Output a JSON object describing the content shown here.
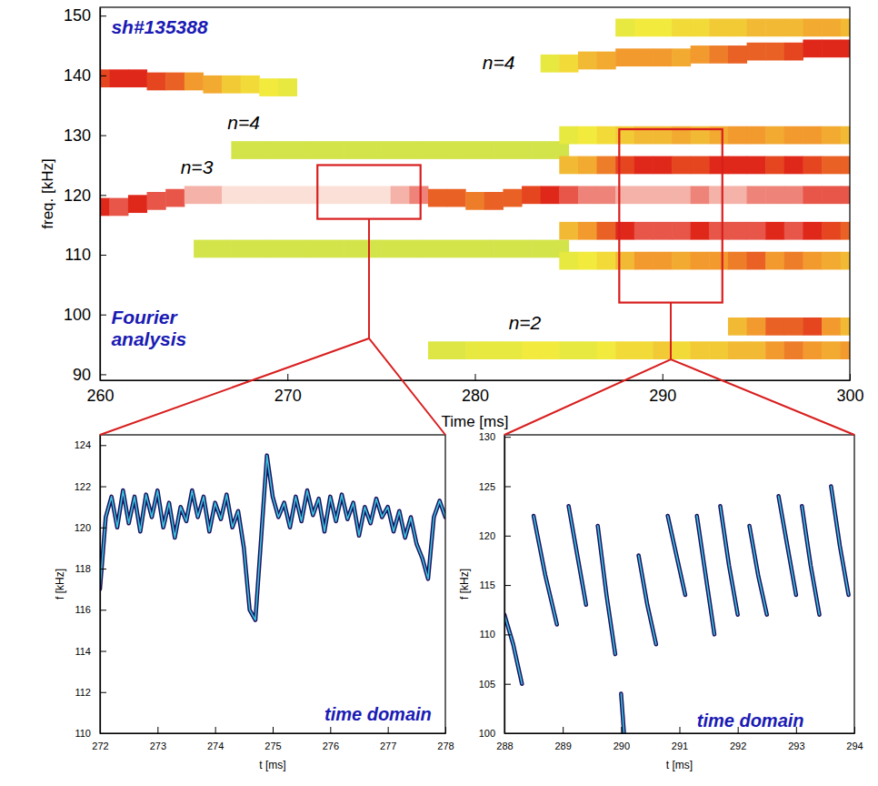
{
  "chart_data": [
    {
      "type": "heatmap",
      "xlabel": "Time [ms]",
      "ylabel": "freq. [kHz]",
      "xlim": [
        260,
        300
      ],
      "ylim": [
        89,
        151.4
      ],
      "xticks": [
        260,
        270,
        280,
        290,
        300
      ],
      "yticks": [
        90,
        100,
        110,
        120,
        130,
        140,
        150
      ],
      "zlim": [
        0,
        1
      ],
      "series": [
        {
          "x": [
            268,
            270,
            272,
            274,
            276,
            278,
            280,
            282,
            284
          ],
          "values": [
            127.5,
            127.5,
            127.5,
            127.5,
            127.5,
            127.5,
            127.5,
            127.5,
            127.5
          ],
          "amplitude": [
            0.2,
            0.2,
            0.2,
            0.2,
            0.2,
            0.2,
            0.2,
            0.2,
            0.2
          ]
        },
        {
          "x": [
            266,
            268,
            270,
            272,
            274,
            276,
            278,
            280,
            282,
            284
          ],
          "values": [
            111,
            111,
            111,
            111,
            111,
            111,
            111,
            111,
            111,
            111
          ],
          "amplitude": [
            0.2,
            0.2,
            0.2,
            0.2,
            0.2,
            0.2,
            0.2,
            0.2,
            0.2,
            0.2
          ]
        },
        {
          "x": [
            278,
            279,
            280,
            281,
            282,
            283,
            284,
            285,
            286,
            287,
            288,
            289,
            290,
            291,
            292,
            293,
            294,
            295,
            296,
            297,
            298,
            299,
            300
          ],
          "values": [
            94,
            94,
            94,
            94,
            94,
            94,
            94,
            94,
            94,
            94,
            94,
            94,
            94,
            94,
            94,
            94,
            94,
            94,
            94,
            94,
            94,
            94,
            94
          ],
          "amplitude": [
            0.25,
            0.25,
            0.3,
            0.3,
            0.3,
            0.35,
            0.35,
            0.3,
            0.3,
            0.35,
            0.4,
            0.4,
            0.45,
            0.4,
            0.45,
            0.45,
            0.5,
            0.5,
            0.6,
            0.65,
            0.6,
            0.55,
            0.6
          ]
        },
        {
          "x": [
            294,
            295,
            296,
            297,
            298,
            299,
            300
          ],
          "values": [
            98,
            98,
            98,
            98,
            98,
            98,
            98
          ],
          "amplitude": [
            0.5,
            0.6,
            0.7,
            0.7,
            0.75,
            0.6,
            0.5
          ]
        },
        {
          "x": [
            288,
            289,
            290,
            291,
            292,
            293,
            294,
            295,
            296,
            297,
            298,
            299,
            300
          ],
          "values": [
            148,
            148,
            148,
            148,
            148,
            148,
            148,
            148,
            148,
            148,
            148,
            148,
            148
          ],
          "amplitude": [
            0.3,
            0.35,
            0.35,
            0.4,
            0.4,
            0.45,
            0.45,
            0.5,
            0.5,
            0.5,
            0.55,
            0.55,
            0.5
          ]
        },
        {
          "x": [
            285,
            286,
            287,
            288,
            289,
            290,
            291,
            292,
            293,
            294,
            295,
            296,
            297,
            298,
            299,
            300
          ],
          "values": [
            109,
            109,
            109,
            109,
            109,
            109,
            109,
            109,
            109,
            109,
            109,
            109,
            109,
            109,
            109,
            109
          ],
          "amplitude": [
            0.3,
            0.35,
            0.4,
            0.5,
            0.6,
            0.6,
            0.55,
            0.6,
            0.6,
            0.65,
            0.7,
            0.6,
            0.65,
            0.6,
            0.55,
            0.5
          ]
        },
        {
          "x": [
            285,
            286,
            287,
            288,
            289,
            290,
            291,
            292,
            293,
            294,
            295,
            296,
            297,
            298,
            299,
            300
          ],
          "values": [
            130,
            130,
            130,
            130,
            130,
            130,
            130,
            130,
            130,
            130,
            130,
            130,
            130,
            130,
            130,
            130
          ],
          "amplitude": [
            0.3,
            0.35,
            0.4,
            0.45,
            0.5,
            0.5,
            0.55,
            0.5,
            0.55,
            0.6,
            0.6,
            0.55,
            0.6,
            0.6,
            0.55,
            0.5
          ]
        },
        {
          "x": [
            285,
            286,
            287,
            288,
            289,
            290,
            291,
            292,
            293,
            294,
            295,
            296,
            297,
            298,
            299,
            300
          ],
          "values": [
            114,
            114,
            114,
            114,
            114,
            114,
            114,
            114,
            114,
            114,
            114,
            114,
            114,
            114,
            114,
            114
          ],
          "amplitude": [
            0.5,
            0.6,
            0.7,
            0.8,
            0.85,
            0.85,
            0.85,
            0.8,
            0.85,
            0.85,
            0.85,
            0.8,
            0.85,
            0.8,
            0.75,
            0.7
          ]
        },
        {
          "x": [
            285,
            286,
            287,
            288,
            289,
            290,
            291,
            292,
            293,
            294,
            295,
            296,
            297,
            298,
            299,
            300
          ],
          "values": [
            125,
            125,
            125,
            125,
            125,
            125,
            125,
            125,
            125,
            125,
            125,
            125,
            125,
            125,
            125,
            125
          ],
          "amplitude": [
            0.5,
            0.55,
            0.65,
            0.75,
            0.8,
            0.8,
            0.75,
            0.75,
            0.8,
            0.8,
            0.8,
            0.75,
            0.8,
            0.75,
            0.7,
            0.7
          ]
        },
        {
          "x": [
            260,
            261,
            262,
            263,
            264,
            265,
            266,
            267,
            268,
            269,
            270
          ],
          "values": [
            139.5,
            139.5,
            139.5,
            139,
            139,
            139,
            138.5,
            138.5,
            138.5,
            138,
            138
          ],
          "amplitude": [
            0.75,
            0.8,
            0.8,
            0.75,
            0.7,
            0.6,
            0.55,
            0.45,
            0.4,
            0.35,
            0.3
          ]
        },
        {
          "x": [
            284,
            285,
            286,
            287,
            288,
            289,
            290,
            291,
            292,
            293,
            294,
            295,
            296,
            297,
            298,
            299,
            300
          ],
          "values": [
            142,
            142,
            142.5,
            142.5,
            143,
            143,
            143,
            143,
            143.5,
            143.5,
            143.5,
            144,
            144,
            144,
            144.5,
            144.5,
            144.5
          ],
          "amplitude": [
            0.3,
            0.4,
            0.5,
            0.55,
            0.6,
            0.6,
            0.6,
            0.55,
            0.6,
            0.65,
            0.7,
            0.7,
            0.7,
            0.75,
            0.8,
            0.8,
            0.8
          ]
        },
        {
          "x": [
            260,
            261,
            262,
            263,
            264,
            265,
            266,
            267,
            268,
            269,
            270,
            271,
            272,
            273,
            274,
            275,
            276,
            277,
            278,
            279,
            280,
            281,
            282,
            283,
            284,
            285,
            286,
            287,
            288,
            289,
            290,
            291,
            292,
            293,
            294,
            295,
            296,
            297,
            298,
            299,
            300
          ],
          "values": [
            118,
            118,
            118.5,
            119,
            119.5,
            120,
            120,
            120,
            120,
            120,
            120,
            120,
            120,
            120,
            120,
            120,
            120,
            120,
            119.5,
            119.5,
            119,
            119,
            119.5,
            120,
            120,
            120,
            120,
            120,
            120,
            120,
            120,
            120,
            120,
            120,
            120,
            120,
            120,
            120,
            120,
            120,
            120
          ],
          "amplitude": [
            0.8,
            0.85,
            0.8,
            0.85,
            0.85,
            0.95,
            0.95,
            1,
            1,
            1,
            1,
            1,
            1,
            1,
            1,
            1,
            0.95,
            0.9,
            0.7,
            0.7,
            0.65,
            0.7,
            0.7,
            0.75,
            0.8,
            0.85,
            0.9,
            0.9,
            0.95,
            0.95,
            0.95,
            0.95,
            0.9,
            0.95,
            0.95,
            0.9,
            0.9,
            0.9,
            0.85,
            0.85,
            0.85
          ]
        }
      ],
      "annotations": [
        {
          "text": "sh#135388",
          "x": 260.6,
          "y": 147,
          "color": "#1a1ab4"
        },
        {
          "text": "n=4",
          "x": 266.8,
          "y": 131,
          "color": "#000000"
        },
        {
          "text": "n=3",
          "x": 264.3,
          "y": 123.5,
          "color": "#000000"
        },
        {
          "text": "n=4",
          "x": 280.4,
          "y": 141,
          "color": "#000000"
        },
        {
          "text": "n=2",
          "x": 281.8,
          "y": 97.5,
          "color": "#000000"
        },
        {
          "text": "Fourier analysis",
          "x": 260.6,
          "y": 98.5,
          "color": "#1a1ab4"
        }
      ],
      "zoom_boxes": [
        {
          "t_range": [
            271.6,
            277.1
          ],
          "f_range": [
            116,
            125
          ]
        },
        {
          "t_range": [
            287.7,
            293.2
          ],
          "f_range": [
            102,
            131
          ]
        }
      ]
    },
    {
      "type": "line",
      "xlabel": "t  [ms]",
      "ylabel": "f  [kHz]",
      "xlim": [
        272,
        278
      ],
      "ylim": [
        110,
        124.5
      ],
      "xticks": [
        272,
        273,
        274,
        275,
        276,
        277,
        278
      ],
      "yticks": [
        110,
        112,
        114,
        116,
        118,
        120,
        122,
        124
      ],
      "series": [
        {
          "x": [
            272.0,
            272.1,
            272.2,
            272.3,
            272.4,
            272.5,
            272.6,
            272.7,
            272.8,
            272.9,
            273.0,
            273.1,
            273.2,
            273.3,
            273.4,
            273.5,
            273.6,
            273.7,
            273.8,
            273.9,
            274.0,
            274.1,
            274.2,
            274.3,
            274.4,
            274.5,
            274.6,
            274.7,
            274.8,
            274.9,
            275.0,
            275.1,
            275.2,
            275.3,
            275.4,
            275.5,
            275.6,
            275.7,
            275.8,
            275.9,
            276.0,
            276.1,
            276.2,
            276.3,
            276.4,
            276.5,
            276.6,
            276.7,
            276.8,
            276.9,
            277.0,
            277.1,
            277.2,
            277.3,
            277.4,
            277.5,
            277.6,
            277.7,
            277.8,
            277.9,
            278.0
          ],
          "values": [
            117,
            120.5,
            121.5,
            120,
            121.8,
            120.2,
            121.5,
            119.8,
            121.6,
            120.5,
            121.8,
            120,
            121.2,
            119.5,
            121,
            120.3,
            121.8,
            120.5,
            121.5,
            119.8,
            121.2,
            120.4,
            121.6,
            120,
            120.8,
            119,
            116,
            115.5,
            119.5,
            123.5,
            121.5,
            120.5,
            121.2,
            120,
            121.5,
            120.3,
            121.8,
            120.6,
            121.4,
            119.8,
            121.5,
            120.3,
            121.6,
            120.4,
            121.2,
            119.6,
            121,
            120.2,
            121.4,
            120.5,
            121,
            119.8,
            120.8,
            119.5,
            120.5,
            119.2,
            118.5,
            117.5,
            120.5,
            121.3,
            120.5
          ]
        }
      ],
      "annotations": [
        {
          "text": "time domain",
          "x": 275.9,
          "y": 110.6,
          "color": "#1a1ab4"
        }
      ]
    },
    {
      "type": "line",
      "xlabel": "t  [ms]",
      "ylabel": "f  [kHz]",
      "xlim": [
        288,
        294
      ],
      "ylim": [
        100,
        130.2
      ],
      "xticks": [
        288,
        289,
        290,
        291,
        292,
        293,
        294
      ],
      "yticks": [
        100,
        105,
        110,
        115,
        120,
        125,
        130
      ],
      "series": [
        {
          "x": [
            288.0,
            288.15,
            288.3,
            288.4,
            288.5,
            288.7,
            288.9,
            289.0,
            289.1,
            289.25,
            289.4,
            289.5,
            289.6,
            289.75,
            289.9,
            289.95,
            290.0,
            290.05,
            290.1,
            290.3,
            290.45,
            290.6,
            290.7,
            290.8,
            290.95,
            291.1,
            291.2,
            291.3,
            291.45,
            291.6,
            291.65,
            291.7,
            291.85,
            292.0,
            292.1,
            292.2,
            292.35,
            292.5,
            292.6,
            292.7,
            292.85,
            293.0,
            293.05,
            293.1,
            293.25,
            293.4,
            293.5,
            293.6,
            293.75,
            293.9,
            294.0
          ],
          "values": [
            112,
            109,
            105,
            null,
            122,
            116,
            111,
            null,
            123,
            118,
            113,
            null,
            121,
            114,
            108,
            null,
            104,
            100,
            null,
            118,
            113,
            109,
            null,
            122,
            118,
            114,
            null,
            122,
            116,
            110,
            null,
            123,
            117,
            112,
            null,
            121,
            116,
            112,
            null,
            124,
            119,
            114,
            null,
            123,
            117,
            112,
            null,
            125,
            119,
            114,
            null
          ]
        }
      ],
      "annotations": [
        {
          "text": "time domain",
          "x": 291.3,
          "y": 100.6,
          "color": "#1a1ab4"
        }
      ]
    }
  ]
}
